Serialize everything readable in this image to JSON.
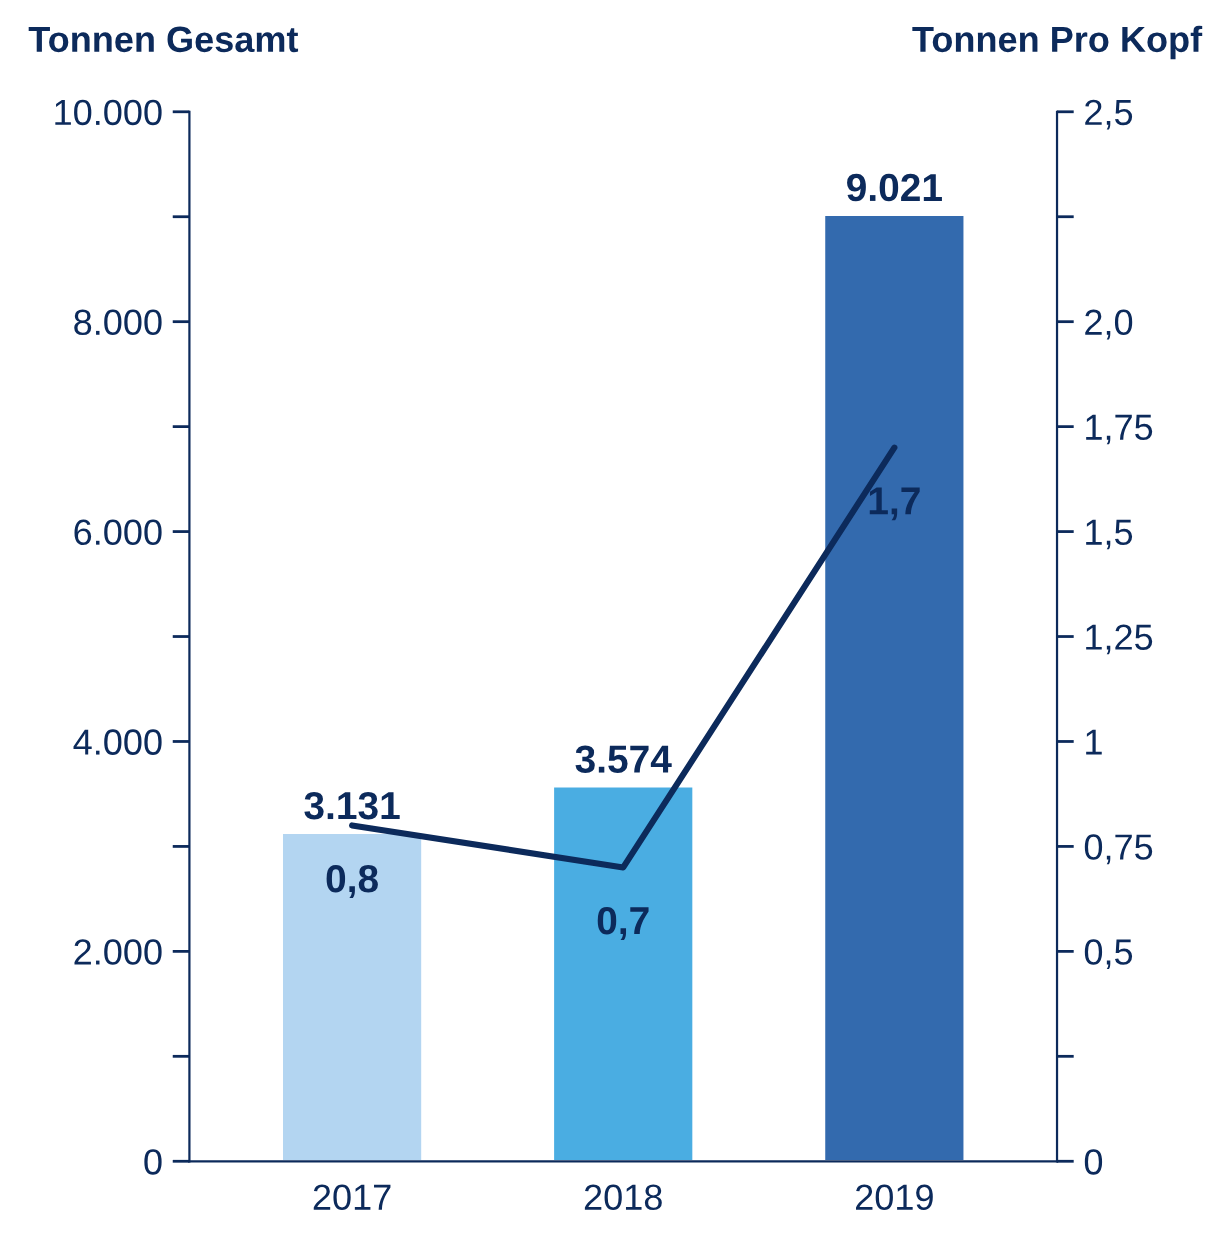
{
  "chart_data": {
    "type": "bar",
    "categories": [
      "2017",
      "2018",
      "2019"
    ],
    "ylabel": "Tonnen Gesamt",
    "y2label": "Tonnen Pro Kopf",
    "ylim": [
      0,
      10000
    ],
    "yticks": [
      {
        "value": 0,
        "label": "0"
      },
      {
        "value": 1000,
        "label": null
      },
      {
        "value": 2000,
        "label": "2.000"
      },
      {
        "value": 3000,
        "label": null
      },
      {
        "value": 4000,
        "label": "4.000"
      },
      {
        "value": 5000,
        "label": null
      },
      {
        "value": 6000,
        "label": "6.000"
      },
      {
        "value": 7000,
        "label": null
      },
      {
        "value": 8000,
        "label": "8.000"
      },
      {
        "value": 9000,
        "label": null
      },
      {
        "value": 10000,
        "label": "10.000"
      }
    ],
    "y2lim": [
      0,
      2.5
    ],
    "y2ticks": [
      {
        "value": 0,
        "label": "0"
      },
      {
        "value": 0.25,
        "label": null
      },
      {
        "value": 0.5,
        "label": "0,5"
      },
      {
        "value": 0.75,
        "label": "0,75"
      },
      {
        "value": 1,
        "label": "1"
      },
      {
        "value": 1.25,
        "label": "1,25"
      },
      {
        "value": 1.5,
        "label": "1,5"
      },
      {
        "value": 1.75,
        "label": "1,75"
      },
      {
        "value": 2,
        "label": "2,0"
      },
      {
        "value": 2.25,
        "label": null
      },
      {
        "value": 2.5,
        "label": "2,5"
      }
    ],
    "series": [
      {
        "colors": [
          "#b3d5f1",
          "#4aade2",
          "#336aae"
        ],
        "values": [
          3131,
          3574,
          9021
        ],
        "value_labels": [
          "3.131",
          "3.574",
          "9.021"
        ]
      },
      {
        "type": "line",
        "axis": "y2",
        "color": "#0c2a5b",
        "values": [
          0.8,
          0.7,
          1.7
        ],
        "value_labels": [
          "0,8",
          "0,7",
          "1,7"
        ]
      }
    ],
    "grid": false,
    "legend": false,
    "marker": "none",
    "line_style": "solid"
  }
}
